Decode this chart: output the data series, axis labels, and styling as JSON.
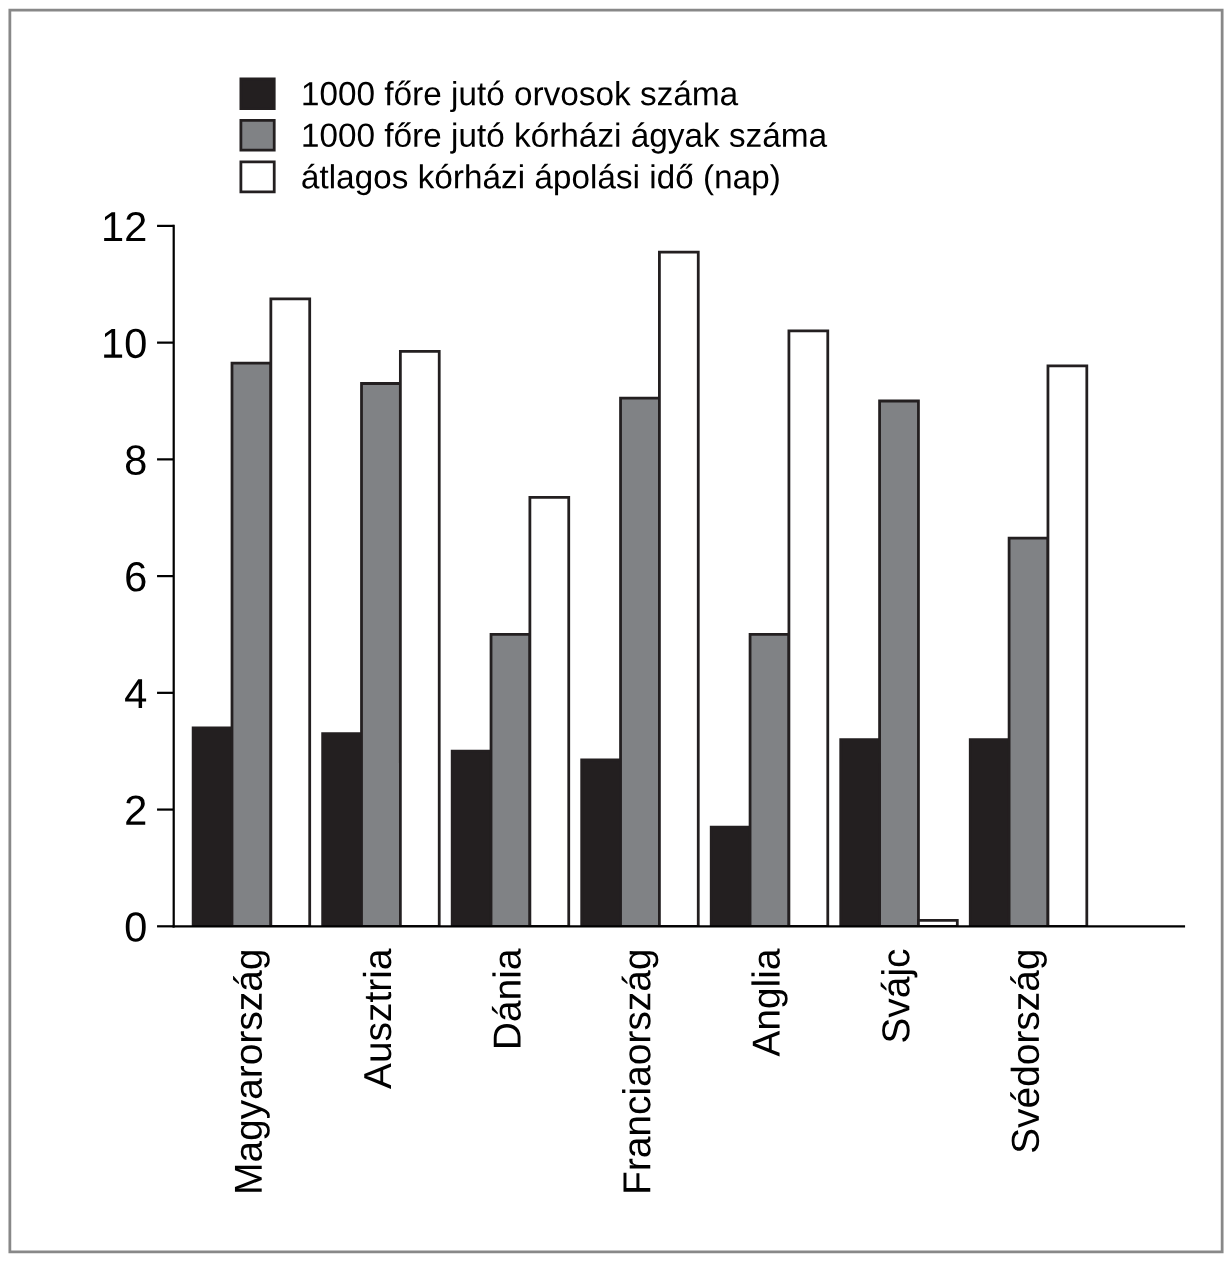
{
  "chart_data": {
    "type": "bar",
    "categories": [
      "Magyarország",
      "Ausztria",
      "Dánia",
      "Franciaország",
      "Anglia",
      "Svájc",
      "Svédország"
    ],
    "series": [
      {
        "name": "1000 főre jutó orvosok száma",
        "color": "#231f20",
        "values": [
          3.4,
          3.3,
          3.0,
          2.85,
          1.7,
          3.2,
          3.2
        ]
      },
      {
        "name": "1000 főre jutó kórházi ágyak száma",
        "color": "#808285",
        "values": [
          9.65,
          9.3,
          5.0,
          9.05,
          5.0,
          9.0,
          6.65
        ]
      },
      {
        "name": "átlagos kórházi ápolási idő (nap)",
        "color": "#ffffff",
        "values": [
          10.75,
          9.85,
          7.35,
          11.55,
          10.2,
          0.1,
          9.6
        ]
      }
    ],
    "ylim": [
      0,
      12
    ],
    "yticks": [
      0,
      2,
      4,
      6,
      8,
      10,
      12
    ],
    "grid": false,
    "legend": "top"
  }
}
